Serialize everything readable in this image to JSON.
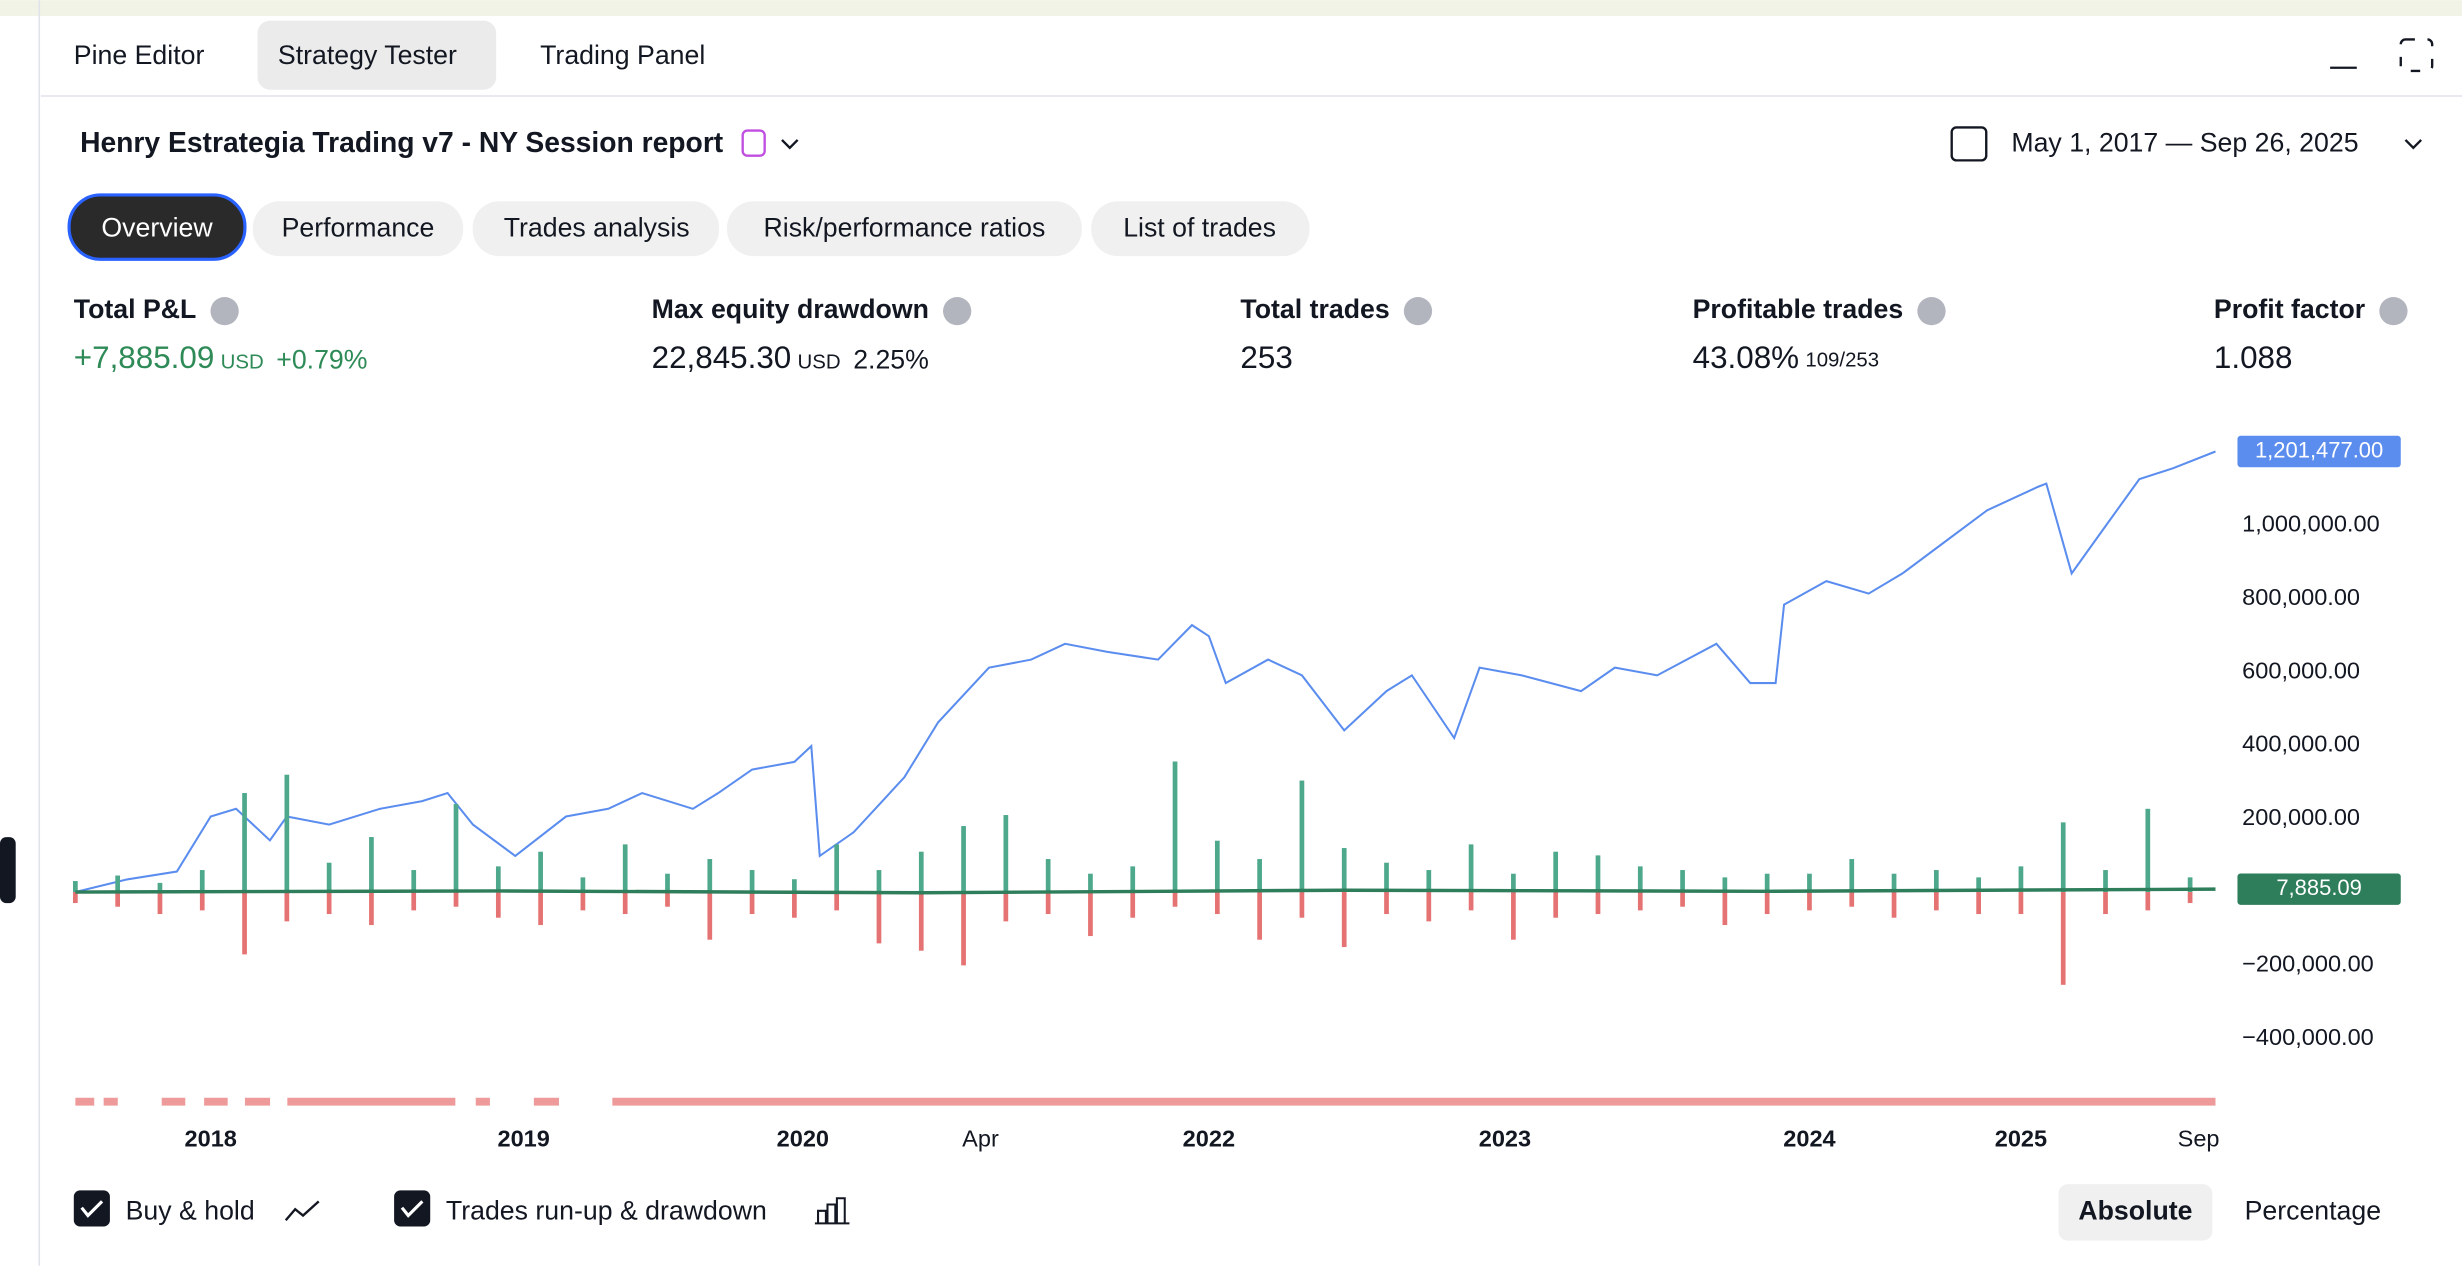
{
  "tabs": [
    "Pine Editor",
    "Strategy Tester",
    "Trading Panel"
  ],
  "report": {
    "title": "Henry Estrategia Trading v7 - NY Session report",
    "date_range": "May 1, 2017 — Sep 26, 2025"
  },
  "subtabs": [
    "Overview",
    "Performance",
    "Trades analysis",
    "Risk/performance ratios",
    "List of trades"
  ],
  "stats": [
    {
      "label": "Total P&L",
      "value": "+7,885.09",
      "unit": "USD",
      "extra": "+0.79%"
    },
    {
      "label": "Max equity drawdown",
      "value": "22,845.30",
      "unit": "USD",
      "extra": "2.25%"
    },
    {
      "label": "Total trades",
      "value": "253"
    },
    {
      "label": "Profitable trades",
      "value": "43.08%",
      "extra": "109/253"
    },
    {
      "label": "Profit factor",
      "value": "1.088"
    }
  ],
  "toggles": [
    "Absolute",
    "Percentage"
  ],
  "chart_data": {
    "type": "line",
    "xlim": [
      0,
      253
    ],
    "ylim": [
      -522500,
      1276000
    ],
    "xticks": [
      {
        "value": 16,
        "label": "2018"
      },
      {
        "value": 53,
        "label": "2019"
      },
      {
        "value": 86,
        "label": "2020"
      },
      {
        "value": 107,
        "label": "Apr"
      },
      {
        "value": 134,
        "label": "2022"
      },
      {
        "value": 169,
        "label": "2023"
      },
      {
        "value": 205,
        "label": "2024"
      },
      {
        "value": 230,
        "label": "2025"
      },
      {
        "value": 251,
        "label": "Sep"
      }
    ],
    "yticks": [
      {
        "value": -400000,
        "label": "−400,000.00"
      },
      {
        "value": -200000,
        "label": "−200,000.00"
      },
      {
        "value": 200000,
        "label": "200,000.00"
      },
      {
        "value": 400000,
        "label": "400,000.00"
      },
      {
        "value": 600000,
        "label": "600,000.00"
      },
      {
        "value": 800000,
        "label": "800,000.00"
      },
      {
        "value": 1000000,
        "label": "1,000,000.00"
      }
    ],
    "series": [
      {
        "name": "Buy & hold",
        "type": "line",
        "color": "#5b8def",
        "last_label": "1,201,477.00",
        "x": [
          0,
          6,
          12,
          16,
          19,
          23,
          25,
          30,
          36,
          41,
          44,
          47,
          52,
          58,
          63,
          67,
          73,
          76,
          80,
          85,
          87,
          88,
          92,
          98,
          102,
          108,
          113,
          117,
          122,
          128,
          132,
          134,
          136,
          141,
          145,
          150,
          155,
          158,
          163,
          166,
          171,
          178,
          182,
          187,
          194,
          198,
          201,
          202,
          207,
          212,
          216,
          221,
          226,
          232,
          233,
          236,
          240,
          244,
          248,
          253
        ],
        "values": [
          0,
          34000,
          56000,
          206000,
          227000,
          141000,
          206000,
          184000,
          227000,
          248000,
          270000,
          184000,
          98500,
          206000,
          227000,
          270000,
          227000,
          270000,
          334000,
          355000,
          398000,
          98500,
          163000,
          313000,
          463000,
          612000,
          634000,
          677000,
          655000,
          634000,
          728000,
          698000,
          570000,
          634000,
          591000,
          441000,
          548000,
          591000,
          420000,
          612000,
          591000,
          548000,
          612000,
          591000,
          677000,
          570000,
          570000,
          784000,
          848000,
          814000,
          869000,
          955000,
          1041000,
          1105000,
          1114000,
          869000,
          998000,
          1126000,
          1156000,
          1201477
        ]
      },
      {
        "name": "Trades run-up & drawdown",
        "type": "bar",
        "color": "#4ea88b",
        "drawdown_color": "#e57373",
        "x": [
          0,
          5,
          10,
          15,
          20,
          25,
          30,
          35,
          40,
          45,
          50,
          55,
          60,
          65,
          70,
          75,
          80,
          85,
          90,
          95,
          100,
          105,
          110,
          115,
          120,
          125,
          130,
          135,
          140,
          145,
          150,
          155,
          160,
          165,
          170,
          175,
          180,
          185,
          190,
          195,
          200,
          205,
          210,
          215,
          220,
          225,
          230,
          235,
          240,
          245,
          250
        ],
        "values": [
          30000,
          45000,
          25000,
          60000,
          270000,
          320000,
          80000,
          150000,
          60000,
          240000,
          70000,
          110000,
          40000,
          130000,
          50000,
          90000,
          60000,
          35000,
          130000,
          60000,
          110000,
          180000,
          210000,
          90000,
          50000,
          70000,
          356000,
          140000,
          90000,
          304000,
          120000,
          80000,
          60000,
          130000,
          50000,
          110000,
          100000,
          70000,
          60000,
          40000,
          50000,
          50000,
          90000,
          50000,
          60000,
          40000,
          70000,
          190000,
          60000,
          227000,
          40000
        ],
        "drawdown": [
          -30000,
          -40000,
          -60000,
          -50000,
          -170000,
          -80000,
          -60000,
          -90000,
          -50000,
          -40000,
          -70000,
          -90000,
          -50000,
          -60000,
          -40000,
          -130000,
          -60000,
          -70000,
          -50000,
          -140000,
          -160000,
          -200000,
          -80000,
          -60000,
          -120000,
          -70000,
          -40000,
          -60000,
          -130000,
          -70000,
          -150000,
          -60000,
          -80000,
          -50000,
          -130000,
          -70000,
          -60000,
          -50000,
          -40000,
          -90000,
          -60000,
          -50000,
          -40000,
          -70000,
          -50000,
          -60000,
          -60000,
          -253000,
          -60000,
          -50000,
          -30000
        ]
      },
      {
        "type": "line",
        "color": "#2e7d5b",
        "last_label": "7,885.09",
        "x": [
          0,
          50,
          100,
          150,
          200,
          253
        ],
        "values": [
          0,
          3000,
          -2000,
          5000,
          2000,
          7885.09
        ]
      }
    ]
  }
}
